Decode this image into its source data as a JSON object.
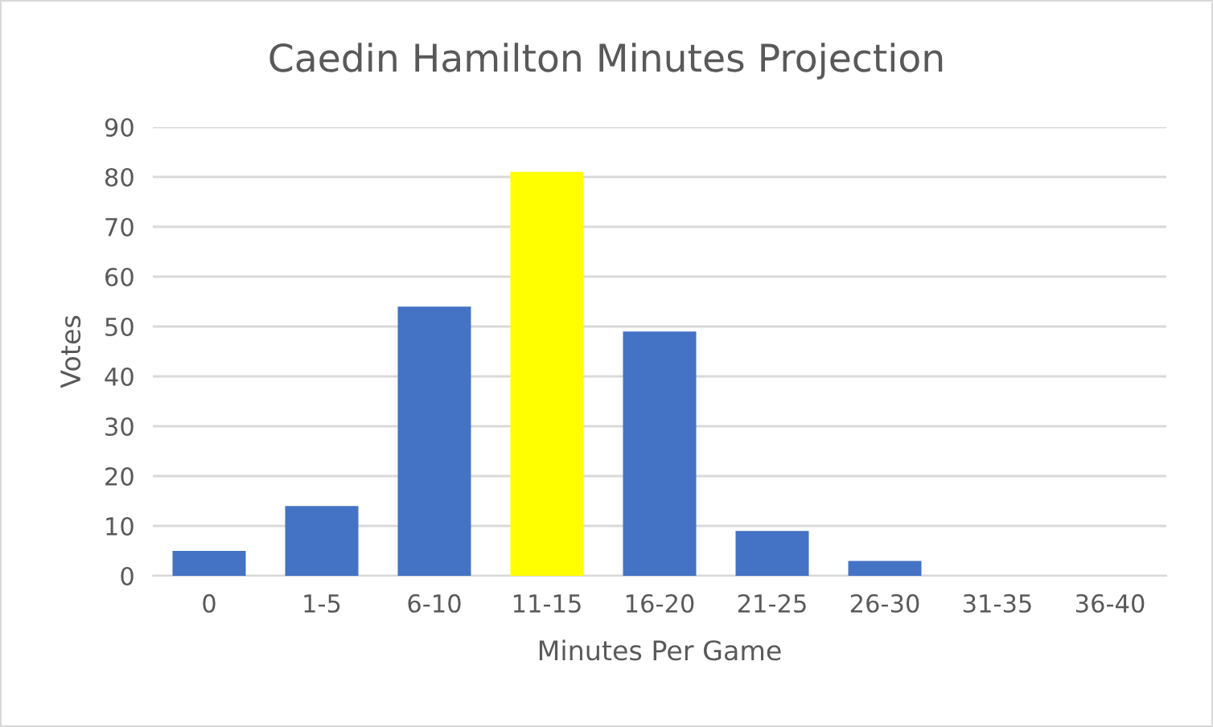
{
  "chart_data": {
    "type": "bar",
    "title": "Caedin Hamilton Minutes Projection",
    "xlabel": "Minutes Per Game",
    "ylabel": "Votes",
    "categories": [
      "0",
      "1-5",
      "6-10",
      "11-15",
      "16-20",
      "21-25",
      "26-30",
      "31-35",
      "36-40"
    ],
    "values": [
      5,
      14,
      54,
      81,
      49,
      9,
      3,
      0,
      0
    ],
    "colors": [
      "#4472c4",
      "#4472c4",
      "#4472c4",
      "#ffff00",
      "#4472c4",
      "#4472c4",
      "#4472c4",
      "#4472c4",
      "#4472c4"
    ],
    "ylim": [
      0,
      90
    ],
    "yticks": [
      0,
      10,
      20,
      30,
      40,
      50,
      60,
      70,
      80,
      90
    ],
    "grid": "y",
    "legend": false
  }
}
